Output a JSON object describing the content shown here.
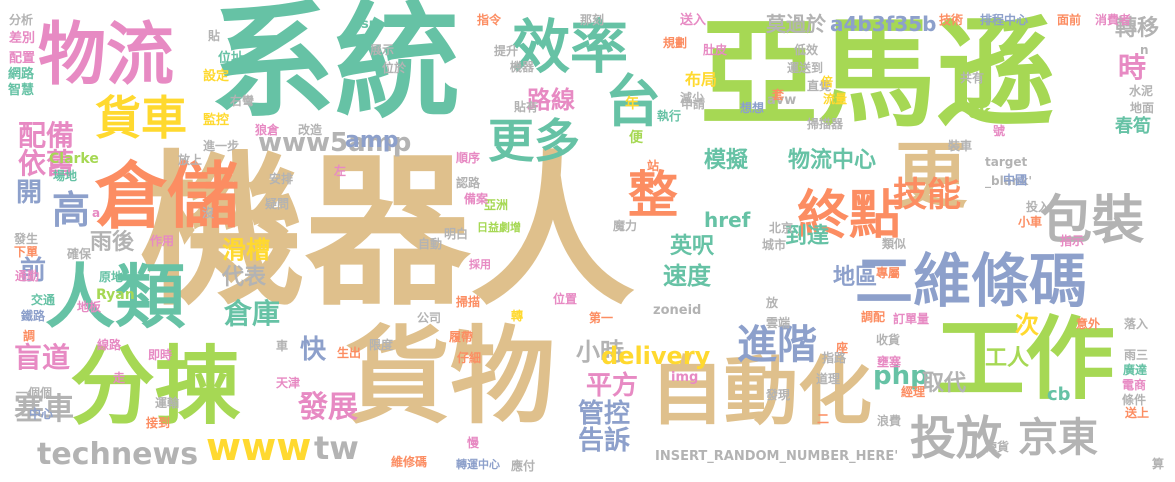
{
  "palette": {
    "sand": "#dfc08c",
    "teal": "#66c2a5",
    "orange": "#fc8d62",
    "blue": "#8da0cb",
    "pink": "#e78ac3",
    "lime": "#a6d854",
    "yellow": "#ffd92f",
    "gray": "#b3b3b3"
  },
  "words": [
    {
      "text": "機器人",
      "color": "sand"
    },
    {
      "text": "系統",
      "color": "teal"
    },
    {
      "text": "亞馬遜",
      "color": "lime"
    },
    {
      "text": "貨物",
      "color": "sand"
    },
    {
      "text": "工作",
      "color": "lime"
    },
    {
      "text": "分揀",
      "color": "lime"
    },
    {
      "text": "物流",
      "color": "pink"
    },
    {
      "text": "倉儲",
      "color": "orange"
    },
    {
      "text": "人類",
      "color": "teal"
    },
    {
      "text": "更",
      "color": "sand"
    },
    {
      "text": "自動化",
      "color": "sand"
    },
    {
      "text": "效率",
      "color": "teal"
    },
    {
      "text": "台",
      "color": "teal"
    },
    {
      "text": "二維條碼",
      "color": "blue"
    },
    {
      "text": "包裝",
      "color": "gray"
    },
    {
      "text": "整",
      "color": "orange"
    },
    {
      "text": "終點",
      "color": "orange"
    },
    {
      "text": "投放",
      "color": "gray"
    },
    {
      "text": "京東",
      "color": "gray"
    },
    {
      "text": "更多",
      "color": "teal"
    },
    {
      "text": "貨車",
      "color": "yellow"
    },
    {
      "text": "進階",
      "color": "blue"
    },
    {
      "text": "技能",
      "color": "orange"
    },
    {
      "text": "technews",
      "color": "gray"
    },
    {
      "text": "www5amp",
      "color": "gray"
    },
    {
      "text": "配備",
      "color": "pink"
    },
    {
      "text": "依舊",
      "color": "pink"
    },
    {
      "text": "高",
      "color": "blue"
    },
    {
      "text": "開",
      "color": "blue"
    },
    {
      "text": "前",
      "color": "blue"
    },
    {
      "text": "盲道",
      "color": "pink"
    },
    {
      "text": "塞車",
      "color": "gray"
    },
    {
      "text": "雨後",
      "color": "gray"
    },
    {
      "text": "滑槽",
      "color": "yellow"
    },
    {
      "text": "代表",
      "color": "gray"
    },
    {
      "text": "倉庫",
      "color": "teal"
    },
    {
      "text": "快",
      "color": "blue"
    },
    {
      "text": "發展",
      "color": "pink"
    },
    {
      "text": "www",
      "color": "yellow"
    },
    {
      "text": "tw",
      "color": "gray"
    },
    {
      "text": "路線",
      "color": "pink"
    },
    {
      "text": "模擬",
      "color": "teal"
    },
    {
      "text": "英呎",
      "color": "teal"
    },
    {
      "text": "速度",
      "color": "teal"
    },
    {
      "text": "小時",
      "color": "gray"
    },
    {
      "text": "delivery",
      "color": "yellow"
    },
    {
      "text": "平方",
      "color": "pink"
    },
    {
      "text": "管控",
      "color": "blue"
    },
    {
      "text": "告訴",
      "color": "blue"
    },
    {
      "text": "物流中心",
      "color": "teal"
    },
    {
      "text": "到達",
      "color": "teal"
    },
    {
      "text": "地區",
      "color": "blue"
    },
    {
      "text": "php",
      "color": "teal"
    },
    {
      "text": "取代",
      "color": "gray"
    },
    {
      "text": "工人",
      "color": "lime"
    },
    {
      "text": "次",
      "color": "yellow"
    },
    {
      "text": "莫過於",
      "color": "gray"
    },
    {
      "text": "a4b3f35b",
      "color": "blue"
    },
    {
      "text": "轉移",
      "color": "gray"
    },
    {
      "text": "時",
      "color": "pink"
    },
    {
      "text": "布局",
      "color": "yellow"
    },
    {
      "text": "年",
      "color": "yellow"
    },
    {
      "text": "amp",
      "color": "blue"
    },
    {
      "text": "href",
      "color": "teal"
    },
    {
      "text": "春筍",
      "color": "teal"
    },
    {
      "text": "ck",
      "color": "lime"
    },
    {
      "text": "cb",
      "color": "teal"
    },
    {
      "text": "Ryan",
      "color": "lime"
    },
    {
      "text": "Clarke",
      "color": "lime"
    },
    {
      "text": "INSERT_RANDOM_NUMBER_HERE'",
      "color": "gray"
    },
    {
      "text": "zoneid",
      "color": "gray"
    },
    {
      "text": "target",
      "color": "gray"
    },
    {
      "text": "_blank'",
      "color": "gray"
    },
    {
      "text": "src",
      "color": "teal"
    },
    {
      "text": "img",
      "color": "pink"
    },
    {
      "text": "avw",
      "color": "gray"
    },
    {
      "text": "分析",
      "color": "gray"
    },
    {
      "text": "差別",
      "color": "pink"
    },
    {
      "text": "配置",
      "color": "pink"
    },
    {
      "text": "網路",
      "color": "teal"
    },
    {
      "text": "智慧",
      "color": "teal"
    },
    {
      "text": "設定",
      "color": "yellow"
    },
    {
      "text": "位址",
      "color": "teal"
    },
    {
      "text": "監控",
      "color": "yellow"
    },
    {
      "text": "右彎",
      "color": "gray"
    },
    {
      "text": "狼倉",
      "color": "pink"
    },
    {
      "text": "改造",
      "color": "gray"
    },
    {
      "text": "進一步",
      "color": "gray"
    },
    {
      "text": "放上",
      "color": "gray"
    },
    {
      "text": "場地",
      "color": "teal"
    },
    {
      "text": "發生",
      "color": "gray"
    },
    {
      "text": "下單",
      "color": "orange"
    },
    {
      "text": "通勤",
      "color": "pink"
    },
    {
      "text": "確保",
      "color": "gray"
    },
    {
      "text": "作用",
      "color": "pink"
    },
    {
      "text": "原地",
      "color": "teal"
    },
    {
      "text": "地板",
      "color": "pink"
    },
    {
      "text": "交通",
      "color": "teal"
    },
    {
      "text": "鐵路",
      "color": "blue"
    },
    {
      "text": "調",
      "color": "orange"
    },
    {
      "text": "線路",
      "color": "pink"
    },
    {
      "text": "即時",
      "color": "pink"
    },
    {
      "text": "一個個",
      "color": "gray"
    },
    {
      "text": "走",
      "color": "pink"
    },
    {
      "text": "運輸",
      "color": "gray"
    },
    {
      "text": "中心",
      "color": "blue"
    },
    {
      "text": "接到",
      "color": "orange"
    },
    {
      "text": "天津",
      "color": "pink"
    },
    {
      "text": "車",
      "color": "gray"
    },
    {
      "text": "生出",
      "color": "orange"
    },
    {
      "text": "限度",
      "color": "gray"
    },
    {
      "text": "公司",
      "color": "gray"
    },
    {
      "text": "履帶",
      "color": "orange"
    },
    {
      "text": "仔細",
      "color": "orange"
    },
    {
      "text": "慢",
      "color": "pink"
    },
    {
      "text": "維修碼",
      "color": "orange"
    },
    {
      "text": "轉運中心",
      "color": "blue"
    },
    {
      "text": "應付",
      "color": "gray"
    },
    {
      "text": "採用",
      "color": "pink"
    },
    {
      "text": "掃描",
      "color": "orange"
    },
    {
      "text": "轉",
      "color": "yellow"
    },
    {
      "text": "位置",
      "color": "pink"
    },
    {
      "text": "第一",
      "color": "orange"
    },
    {
      "text": "放",
      "color": "gray"
    },
    {
      "text": "座",
      "color": "orange"
    },
    {
      "text": "雲端",
      "color": "gray"
    },
    {
      "text": "調配",
      "color": "orange"
    },
    {
      "text": "訂單量",
      "color": "pink"
    },
    {
      "text": "收貨",
      "color": "gray"
    },
    {
      "text": "壅塞",
      "color": "pink"
    },
    {
      "text": "指路",
      "color": "gray"
    },
    {
      "text": "道理",
      "color": "gray"
    },
    {
      "text": "經理",
      "color": "orange"
    },
    {
      "text": "發現",
      "color": "gray"
    },
    {
      "text": "二",
      "color": "orange"
    },
    {
      "text": "浪費",
      "color": "gray"
    },
    {
      "text": "揀貨",
      "color": "gray"
    },
    {
      "text": "算",
      "color": "gray"
    },
    {
      "text": "送上",
      "color": "orange"
    },
    {
      "text": "條件",
      "color": "gray"
    },
    {
      "text": "電商",
      "color": "pink"
    },
    {
      "text": "廣達",
      "color": "teal"
    },
    {
      "text": "雨三",
      "color": "gray"
    },
    {
      "text": "落入",
      "color": "gray"
    },
    {
      "text": "意外",
      "color": "orange"
    },
    {
      "text": "指示",
      "color": "pink"
    },
    {
      "text": "小車",
      "color": "orange"
    },
    {
      "text": "投入",
      "color": "gray"
    },
    {
      "text": "地面",
      "color": "gray"
    },
    {
      "text": "水泥",
      "color": "gray"
    },
    {
      "text": "共有",
      "color": "gray"
    },
    {
      "text": "排程中心",
      "color": "blue"
    },
    {
      "text": "面前",
      "color": "orange"
    },
    {
      "text": "消費者",
      "color": "pink"
    },
    {
      "text": "技術",
      "color": "orange"
    },
    {
      "text": "低效",
      "color": "gray"
    },
    {
      "text": "運送到",
      "color": "gray"
    },
    {
      "text": "直覺",
      "color": "gray"
    },
    {
      "text": "流量",
      "color": "yellow"
    },
    {
      "text": "倍",
      "color": "yellow"
    },
    {
      "text": "掃描器",
      "color": "gray"
    },
    {
      "text": "號",
      "color": "pink"
    },
    {
      "text": "中國",
      "color": "blue"
    },
    {
      "text": "裝車",
      "color": "gray"
    },
    {
      "text": "類似",
      "color": "gray"
    },
    {
      "text": "城市",
      "color": "gray"
    },
    {
      "text": "北京",
      "color": "gray"
    },
    {
      "text": "專屬",
      "color": "orange"
    },
    {
      "text": "魔力",
      "color": "gray"
    },
    {
      "text": "站",
      "color": "orange"
    },
    {
      "text": "便",
      "color": "lime"
    },
    {
      "text": "想想",
      "color": "blue"
    },
    {
      "text": "那刻",
      "color": "gray"
    },
    {
      "text": "指令",
      "color": "orange"
    },
    {
      "text": "提升",
      "color": "gray"
    },
    {
      "text": "機器",
      "color": "gray"
    },
    {
      "text": "貼有",
      "color": "gray"
    },
    {
      "text": "規劃",
      "color": "orange"
    },
    {
      "text": "送入",
      "color": "pink"
    },
    {
      "text": "減少",
      "color": "gray"
    },
    {
      "text": "執行",
      "color": "teal"
    },
    {
      "text": "申請",
      "color": "gray"
    },
    {
      "text": "肚皮",
      "color": "pink"
    },
    {
      "text": "套",
      "color": "orange"
    },
    {
      "text": "展示",
      "color": "gray"
    },
    {
      "text": "位於",
      "color": "gray"
    },
    {
      "text": "貼",
      "color": "gray"
    },
    {
      "text": "亞洲",
      "color": "lime"
    },
    {
      "text": "認路",
      "color": "gray"
    },
    {
      "text": "備案",
      "color": "pink"
    },
    {
      "text": "順序",
      "color": "pink"
    },
    {
      "text": "明白",
      "color": "gray"
    },
    {
      "text": "自動",
      "color": "gray"
    },
    {
      "text": "日益劇增",
      "color": "lime"
    },
    {
      "text": "安排",
      "color": "gray"
    },
    {
      "text": "左",
      "color": "pink"
    },
    {
      "text": "疑問",
      "color": "gray"
    },
    {
      "text": "沒",
      "color": "gray"
    },
    {
      "text": "n",
      "color": "gray"
    },
    {
      "text": "a",
      "color": "pink"
    }
  ]
}
